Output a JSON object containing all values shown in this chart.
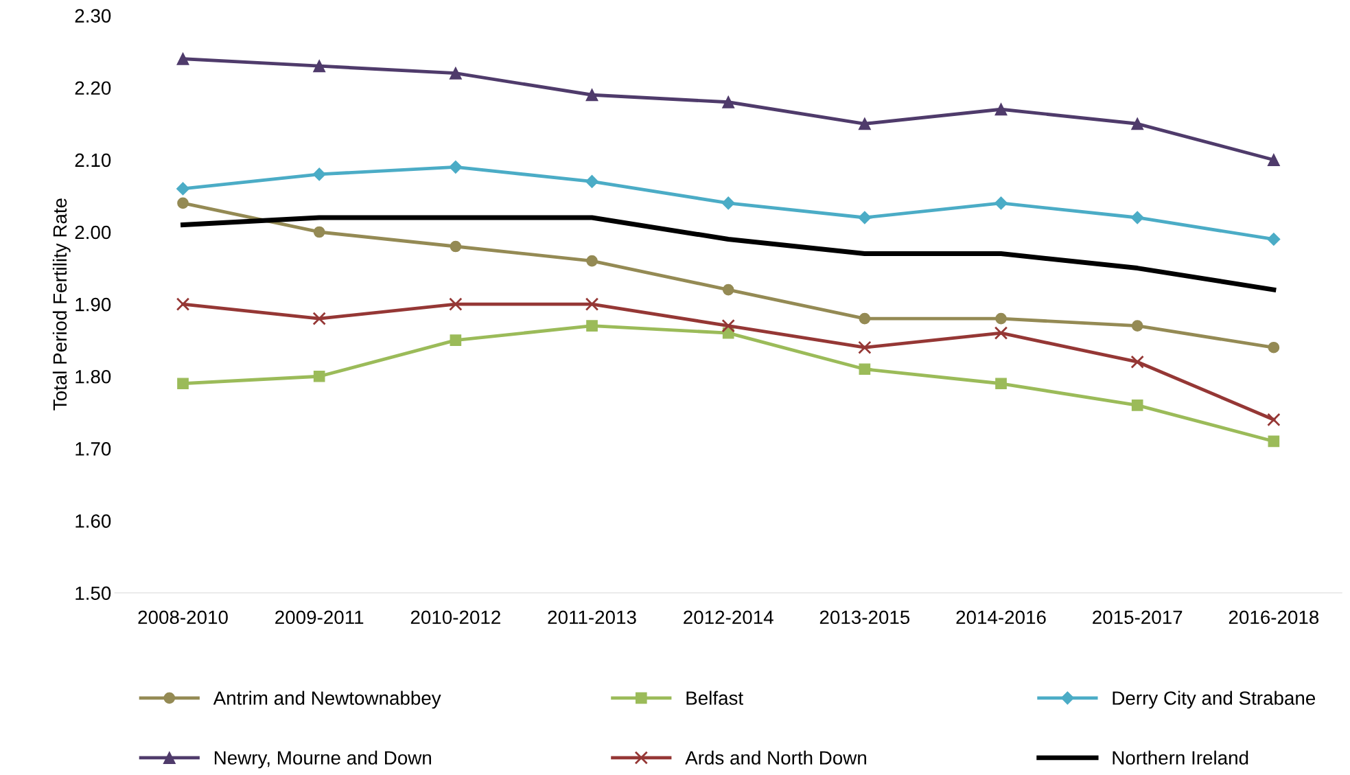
{
  "chart_data": {
    "type": "line",
    "ylabel": "Total Period Fertility Rate",
    "categories": [
      "2008-2010",
      "2009-2011",
      "2010-2012",
      "2011-2013",
      "2012-2014",
      "2013-2015",
      "2014-2016",
      "2015-2017",
      "2016-2018"
    ],
    "series": [
      {
        "name": "Antrim and Newtownabbey",
        "color": "#948a54",
        "marker": "circle",
        "values": [
          2.04,
          2.0,
          1.98,
          1.96,
          1.92,
          1.88,
          1.88,
          1.87,
          1.84
        ]
      },
      {
        "name": "Belfast",
        "color": "#9bbb59",
        "marker": "square",
        "values": [
          1.79,
          1.8,
          1.85,
          1.87,
          1.86,
          1.81,
          1.79,
          1.76,
          1.71
        ]
      },
      {
        "name": "Derry City and Strabane",
        "color": "#4bacc6",
        "marker": "diamond",
        "values": [
          2.06,
          2.08,
          2.09,
          2.07,
          2.04,
          2.02,
          2.04,
          2.02,
          1.99
        ]
      },
      {
        "name": "Newry, Mourne and Down",
        "color": "#4f3b6b",
        "marker": "triangle",
        "values": [
          2.24,
          2.23,
          2.22,
          2.19,
          2.18,
          2.15,
          2.17,
          2.15,
          2.1
        ]
      },
      {
        "name": "Ards and North Down",
        "color": "#953735",
        "marker": "cross",
        "values": [
          1.9,
          1.88,
          1.9,
          1.9,
          1.87,
          1.84,
          1.86,
          1.82,
          1.74
        ]
      },
      {
        "name": "Northern Ireland",
        "color": "#000000",
        "marker": "none",
        "values": [
          2.01,
          2.02,
          2.02,
          2.02,
          1.99,
          1.97,
          1.97,
          1.95,
          1.92
        ]
      }
    ],
    "ylim": [
      1.5,
      2.3
    ],
    "yticks": [
      {
        "value": 1.5,
        "label": "1.50"
      },
      {
        "value": 1.6,
        "label": "1.60"
      },
      {
        "value": 1.7,
        "label": "1.70"
      },
      {
        "value": 1.8,
        "label": "1.80"
      },
      {
        "value": 1.9,
        "label": "1.90"
      },
      {
        "value": 2.0,
        "label": "2.00"
      },
      {
        "value": 2.1,
        "label": "2.10"
      },
      {
        "value": 2.2,
        "label": "2.20"
      },
      {
        "value": 2.3,
        "label": "2.30"
      }
    ],
    "grid": false,
    "legend": "bottom",
    "line_style": "solid"
  }
}
